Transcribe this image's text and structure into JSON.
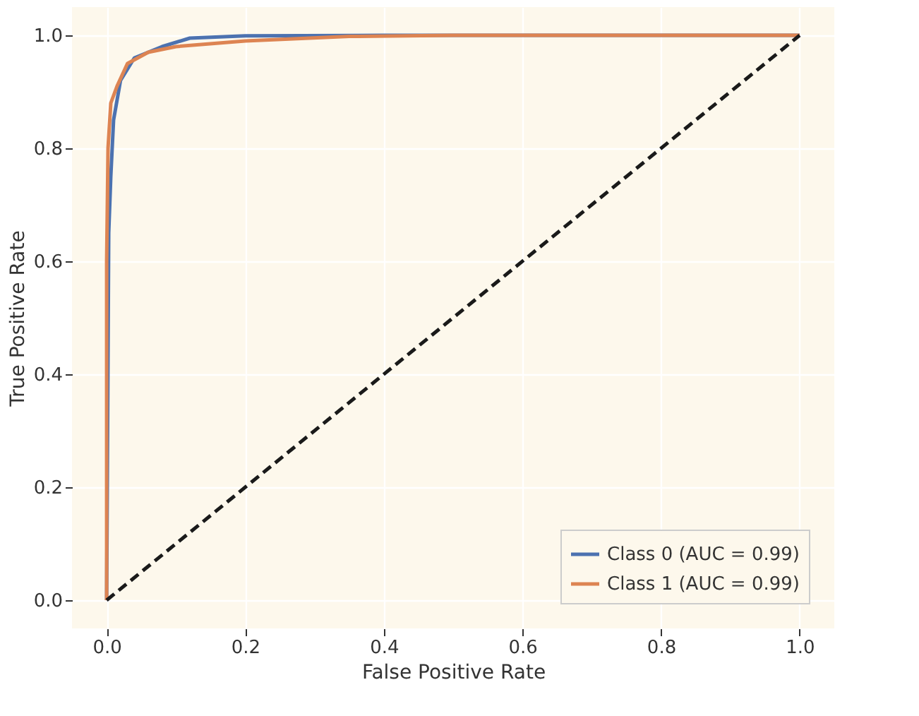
{
  "chart_data": {
    "type": "line",
    "xlabel": "False Positive Rate",
    "ylabel": "True Positive Rate",
    "xlim": [
      -0.05,
      1.05
    ],
    "ylim": [
      -0.05,
      1.05
    ],
    "xticks": [
      {
        "value": 0,
        "label": "0.0"
      },
      0.2,
      0.4,
      0.6,
      0.8,
      {
        "value": 1,
        "label": "1.0"
      }
    ],
    "yticks": [
      {
        "value": 0,
        "label": "0.0"
      },
      0.2,
      0.4,
      0.6,
      0.8,
      {
        "value": 1,
        "label": "1.0"
      }
    ],
    "grid": true,
    "legend": "bottom right",
    "series": [
      {
        "name": "Class 0 (AUC = 0.99)",
        "color": "#4c72b0",
        "x": [
          0,
          0.003,
          0.006,
          0.01,
          0.02,
          0.04,
          0.08,
          0.12,
          0.2,
          0.4,
          1
        ],
        "values": [
          0,
          0.65,
          0.75,
          0.85,
          0.92,
          0.96,
          0.98,
          0.995,
          0.999,
          1,
          1
        ]
      },
      {
        "name": "Class 1 (AUC = 0.99)",
        "color": "#dd8452",
        "x": [
          0,
          0,
          0.002,
          0.006,
          0.015,
          0.03,
          0.06,
          0.1,
          0.2,
          0.35,
          0.5,
          1
        ],
        "values": [
          0,
          0.6,
          0.8,
          0.88,
          0.91,
          0.95,
          0.97,
          0.98,
          0.99,
          0.998,
          1,
          1
        ]
      },
      {
        "color": "#1a1a1a",
        "line_style": "dashed",
        "x": [
          0,
          1
        ],
        "values": [
          0,
          1
        ]
      }
    ]
  }
}
